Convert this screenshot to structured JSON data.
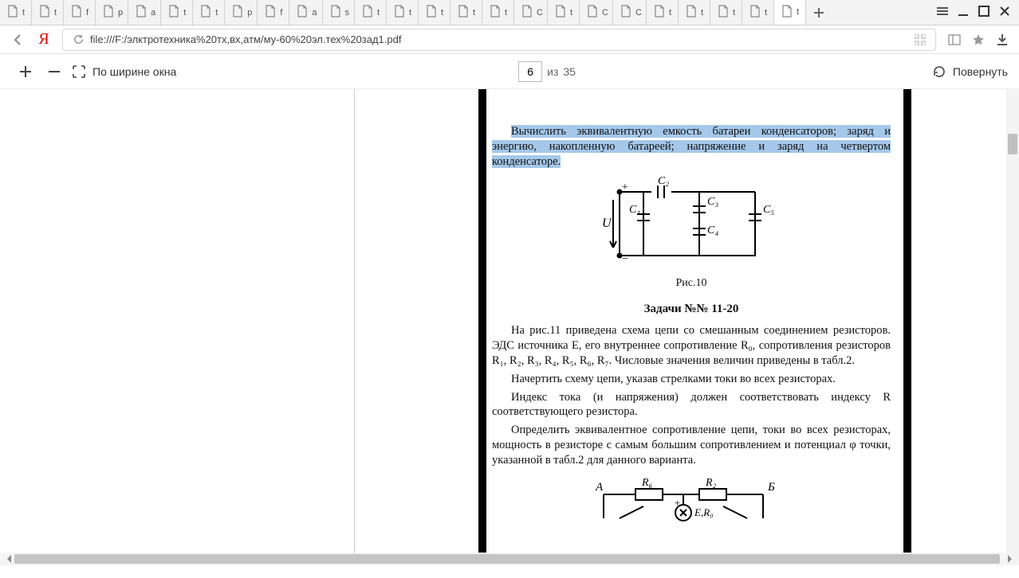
{
  "tabs": [
    {
      "label": "t"
    },
    {
      "label": "t"
    },
    {
      "label": "f"
    },
    {
      "label": "p"
    },
    {
      "label": "a"
    },
    {
      "label": "t"
    },
    {
      "label": "t"
    },
    {
      "label": "p"
    },
    {
      "label": "f"
    },
    {
      "label": "a"
    },
    {
      "label": "s"
    },
    {
      "label": "t"
    },
    {
      "label": "t"
    },
    {
      "label": "t"
    },
    {
      "label": "t"
    },
    {
      "label": "t"
    },
    {
      "label": "C"
    },
    {
      "label": "t"
    },
    {
      "label": "C"
    },
    {
      "label": "C"
    },
    {
      "label": "t"
    },
    {
      "label": "t"
    },
    {
      "label": "t"
    },
    {
      "label": "t"
    },
    {
      "label": "t"
    }
  ],
  "active_tab_index": 24,
  "address": {
    "url": "file:///F:/элктротехника%20тх,вх,атм/му-60%20эл.тех%20зад1.pdf"
  },
  "pdfbar": {
    "fit_label": "По ширине окна",
    "current_page": "6",
    "of_label": "из",
    "total_pages": "35",
    "rotate_label": "Повернуть"
  },
  "document": {
    "highlighted": "Вычислить эквивалентную емкость батареи конденсаторов; заряд и энергию, накопленную батареей; напряжение и заряд на четвертом конденсаторе.",
    "fig_caption": "Рис.10",
    "heading": "Задачи №№ 11-20",
    "p1": "На рис.11 приведена схема цепи со смешанным соединением резисторов. ЭДС источника E, его внутреннее сопротивление R₀, сопротивления резисторов R₁, R₂, R₃, R₄, R₅, R₆, R₇. Числовые значения величин приведены в табл.2.",
    "p2": "Начертить схему цепи, указав стрелками токи во всех резисторах.",
    "p3": "Индекс тока (и напряжения) должен соответствовать индексу R соответствующего резистора.",
    "p4": "Определить эквивалентное сопротивление цепи, токи во всех резисторах, мощность в резисторе с самым большим сопротивлением и потенциал φ точки, указанной в табл.2 для данного варианта."
  },
  "circuit1": {
    "labels": {
      "U": "U",
      "C1": "C₁",
      "C2": "C₂",
      "C3": "C₃",
      "C4": "C₄",
      "C5": "C₅",
      "plus": "+",
      "minus": "−"
    }
  },
  "circuit2": {
    "labels": {
      "A": "A",
      "B": "Б",
      "R6": "R₆",
      "R2": "R₂",
      "E": "E,R₀",
      "plus": "+"
    }
  },
  "colors": {
    "highlight": "#a5c8ea",
    "tabbg": "#f3f3f3",
    "border": "#d0d0d0",
    "scrollthumb": "#c0c0c0",
    "ink": "#111111"
  }
}
